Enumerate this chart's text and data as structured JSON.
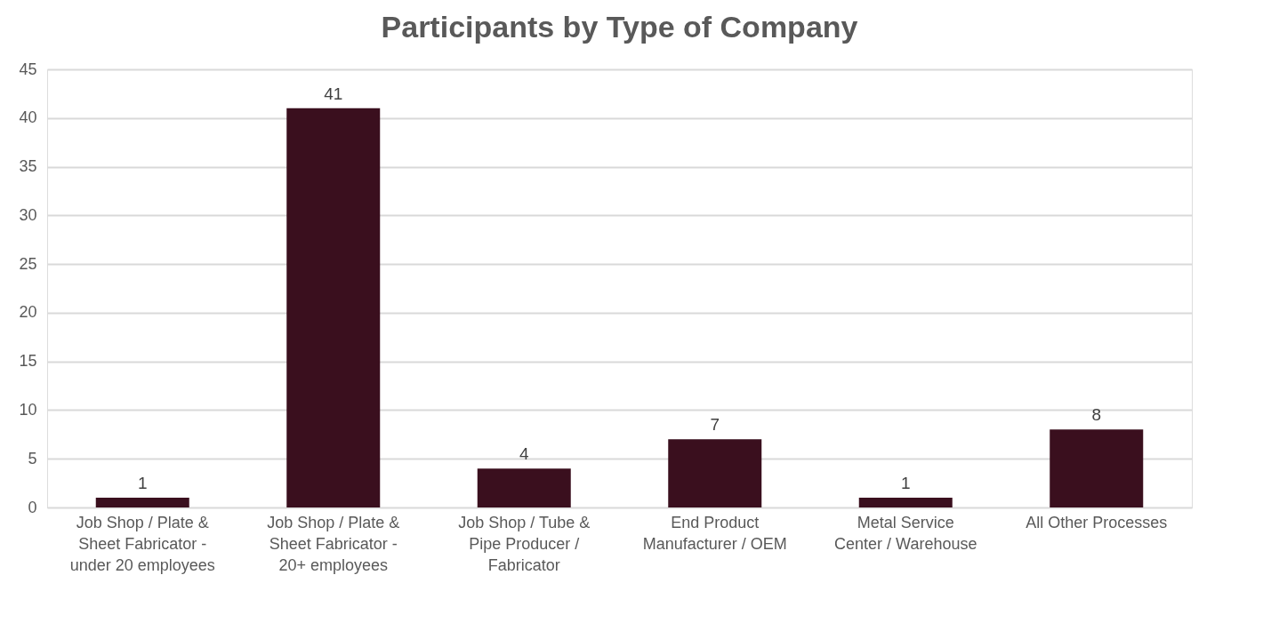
{
  "chart_data": {
    "type": "bar",
    "title": "Participants by Type of Company",
    "categories": [
      "Job Shop / Plate & Sheet Fabricator - under 20 employees",
      "Job Shop / Plate & Sheet Fabricator - 20+ employees",
      "Job Shop / Tube & Pipe Producer / Fabricator",
      "End Product Manufacturer / OEM",
      "Metal Service Center / Warehouse",
      "All Other Processes"
    ],
    "values": [
      1,
      41,
      4,
      7,
      1,
      8
    ],
    "color": "#3a0f1e",
    "ylim": [
      0,
      45
    ],
    "yticks": [
      0,
      5,
      10,
      15,
      20,
      25,
      30,
      35,
      40,
      45
    ],
    "grid": "y",
    "data_labels": true
  }
}
